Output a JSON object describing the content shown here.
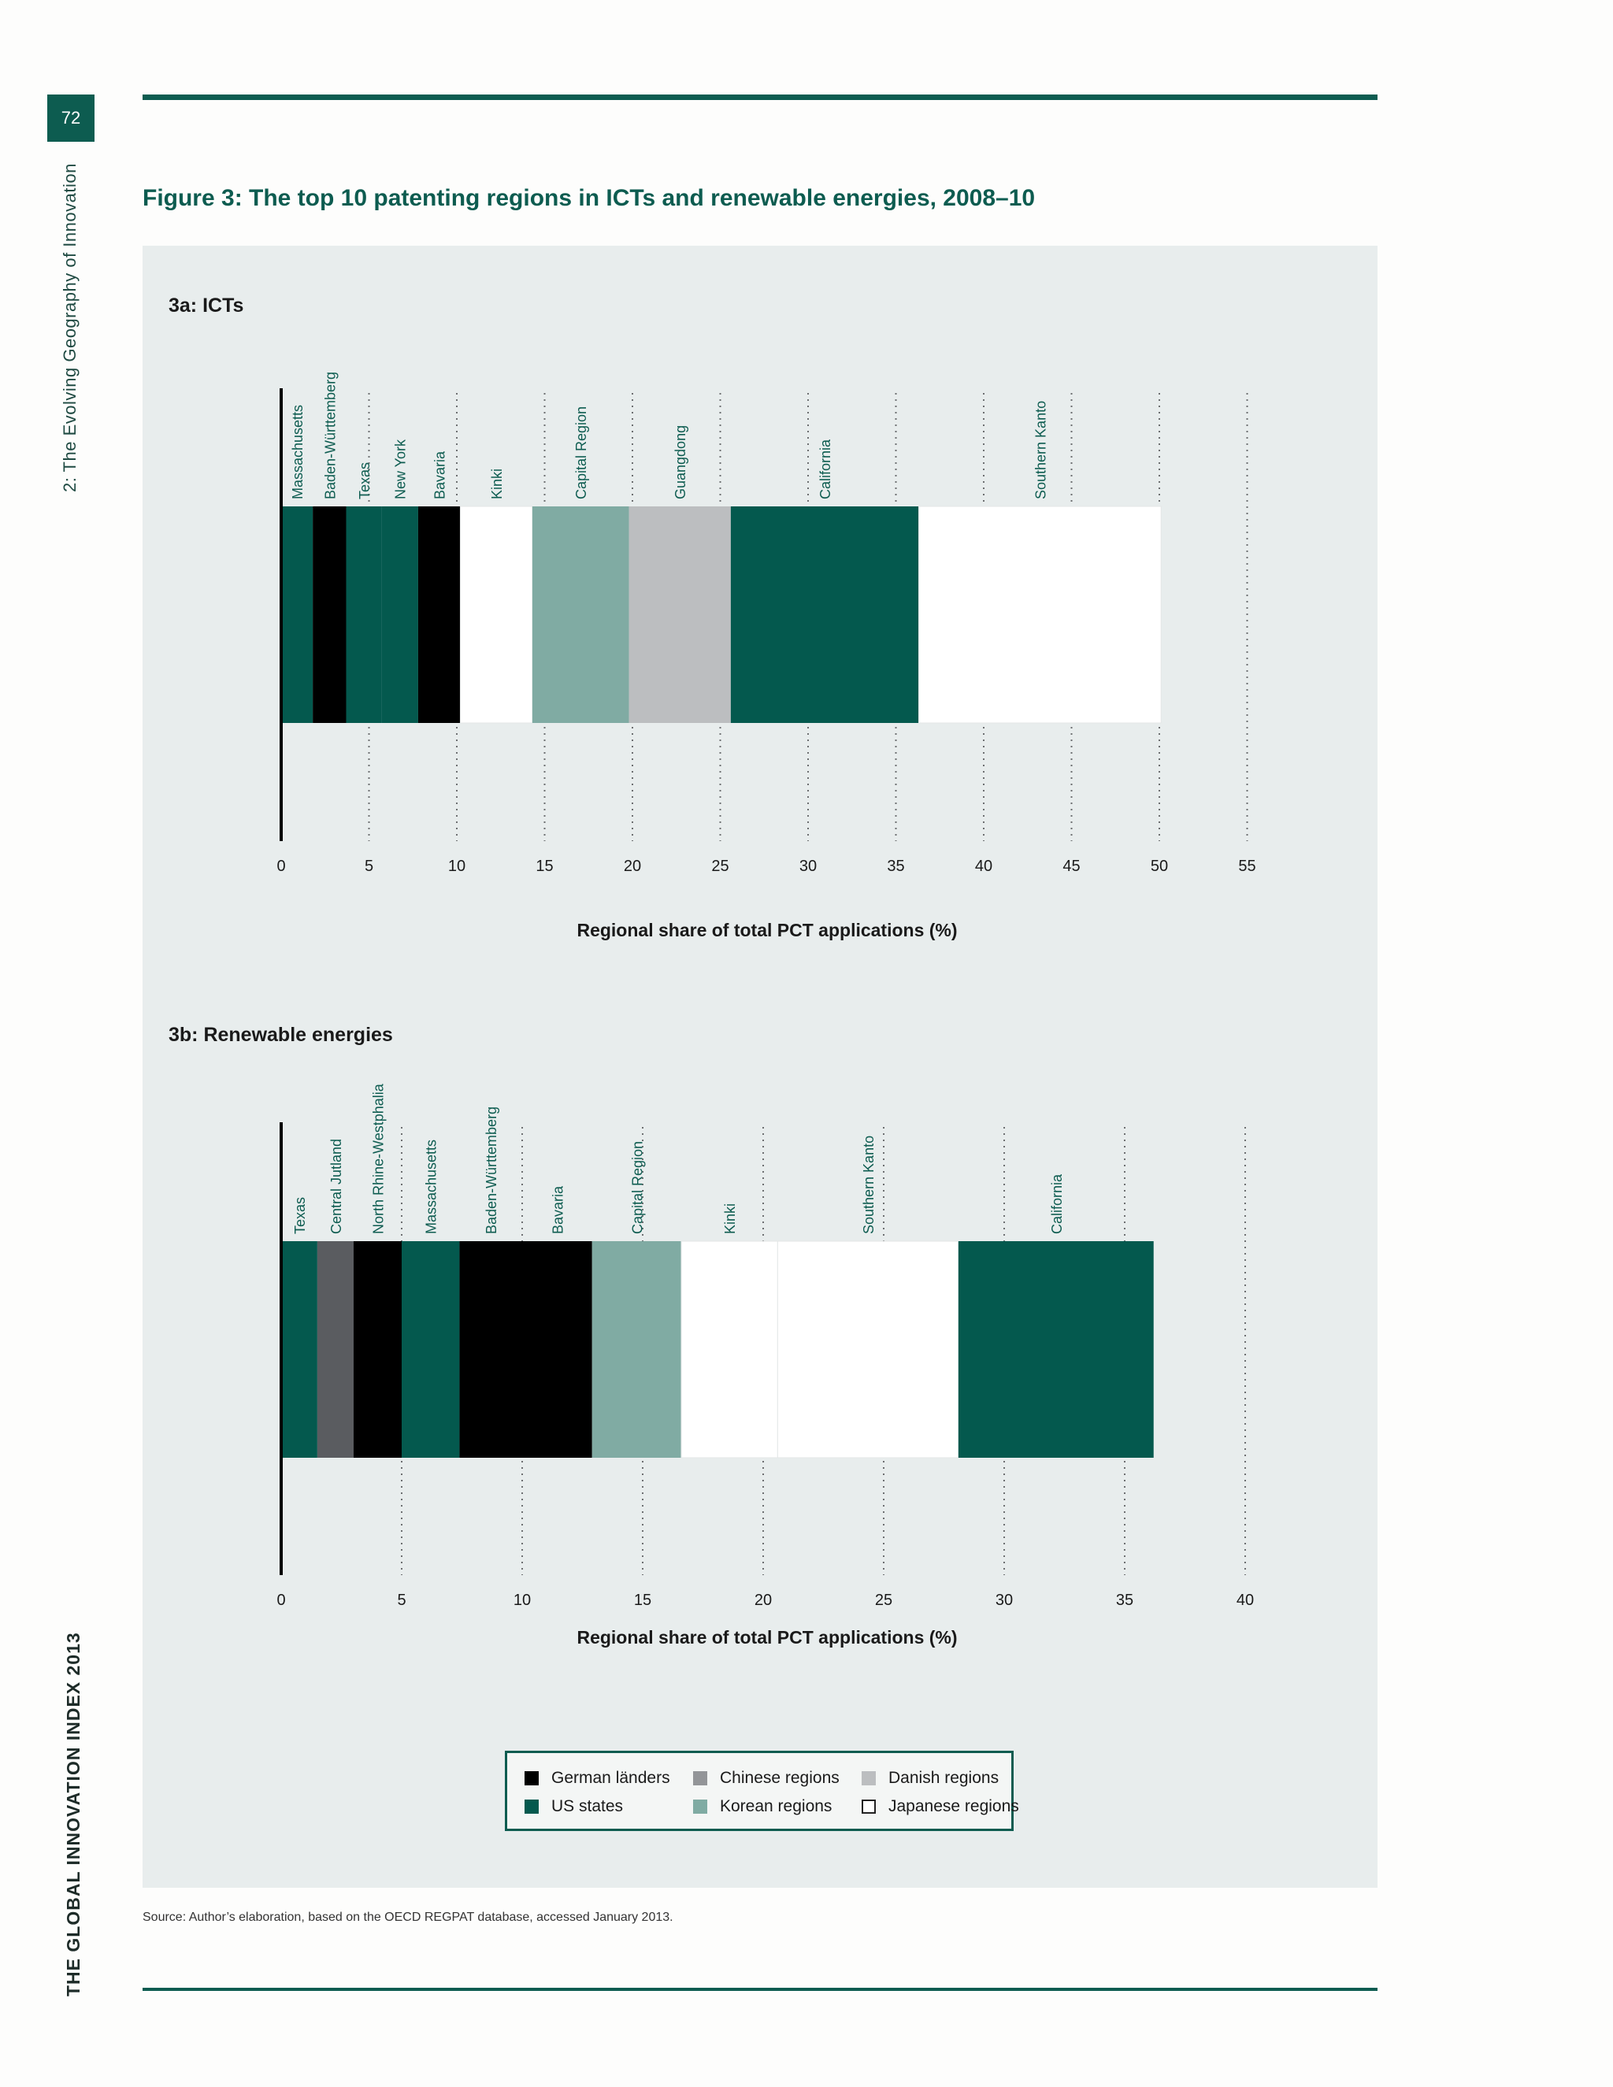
{
  "page": {
    "number": "72",
    "chapter": "2: The Evolving Geography of Innovation",
    "index_title": "THE GLOBAL INNOVATION INDEX 2013",
    "figure_title": "Figure 3: The top 10 patenting regions in ICTs and renewable energies, 2008–10",
    "source": "Source: Author’s elaboration, based on the OECD REGPAT database, accessed January 2013."
  },
  "colors": {
    "german": "#000000",
    "us": "#04594e",
    "chinese": "#bcbec0",
    "korean": "#80aba3",
    "danish": "#5a5c60",
    "japanese": "#ffffff",
    "label_text": "#0d5c50"
  },
  "legend": {
    "items": [
      {
        "label": "German länders",
        "group": "german"
      },
      {
        "label": "Chinese regions",
        "group": "chinese_swatch"
      },
      {
        "label": "Danish regions",
        "group": "danish_swatch"
      },
      {
        "label": "US states",
        "group": "us"
      },
      {
        "label": "Korean regions",
        "group": "korean"
      },
      {
        "label": "Japanese regions",
        "group": "japanese"
      }
    ],
    "swatch_colors": {
      "german": "#000000",
      "chinese_swatch": "#939598",
      "danish_swatch": "#bcbec0",
      "us": "#04594e",
      "korean": "#80aba3",
      "japanese": "#ffffff"
    }
  },
  "chart_data": [
    {
      "type": "bar",
      "stacked": true,
      "orientation": "horizontal",
      "title": "3a: ICTs",
      "xlabel": "Regional share of total PCT applications (%)",
      "xlim": [
        0,
        55
      ],
      "xticks": [
        0,
        5,
        10,
        15,
        20,
        25,
        30,
        35,
        40,
        45,
        50,
        55
      ],
      "grid": true,
      "segments": [
        {
          "name": "Massachusetts",
          "value": 1.8,
          "group": "us"
        },
        {
          "name": "Baden-Württemberg",
          "value": 1.9,
          "group": "german"
        },
        {
          "name": "Texas",
          "value": 2.0,
          "group": "us"
        },
        {
          "name": "New York",
          "value": 2.1,
          "group": "us"
        },
        {
          "name": "Bavaria",
          "value": 2.4,
          "group": "german"
        },
        {
          "name": "Kinki",
          "value": 4.1,
          "group": "japanese"
        },
        {
          "name": "Capital Region",
          "value": 5.5,
          "group": "korean"
        },
        {
          "name": "Guangdong",
          "value": 5.8,
          "group": "chinese"
        },
        {
          "name": "California",
          "value": 10.7,
          "group": "us"
        },
        {
          "name": "Southern Kanto",
          "value": 13.8,
          "group": "japanese"
        }
      ]
    },
    {
      "type": "bar",
      "stacked": true,
      "orientation": "horizontal",
      "title": "3b: Renewable energies",
      "xlabel": "Regional share of total PCT applications (%)",
      "xlim": [
        0,
        40
      ],
      "xticks": [
        0,
        5,
        10,
        15,
        20,
        25,
        30,
        35,
        40
      ],
      "grid": true,
      "segments": [
        {
          "name": "Texas",
          "value": 1.5,
          "group": "us"
        },
        {
          "name": "Central Jutland",
          "value": 1.5,
          "group": "danish"
        },
        {
          "name": "North Rhine-Westphalia",
          "value": 2.0,
          "group": "german"
        },
        {
          "name": "Massachusetts",
          "value": 2.4,
          "group": "us"
        },
        {
          "name": "Baden-Württemberg",
          "value": 2.6,
          "group": "german"
        },
        {
          "name": "Bavaria",
          "value": 2.9,
          "group": "german"
        },
        {
          "name": "Capital Region",
          "value": 3.7,
          "group": "korean"
        },
        {
          "name": "Kinki",
          "value": 4.0,
          "group": "japanese"
        },
        {
          "name": "Southern Kanto",
          "value": 7.5,
          "group": "japanese"
        },
        {
          "name": "California",
          "value": 8.1,
          "group": "us"
        }
      ]
    }
  ]
}
